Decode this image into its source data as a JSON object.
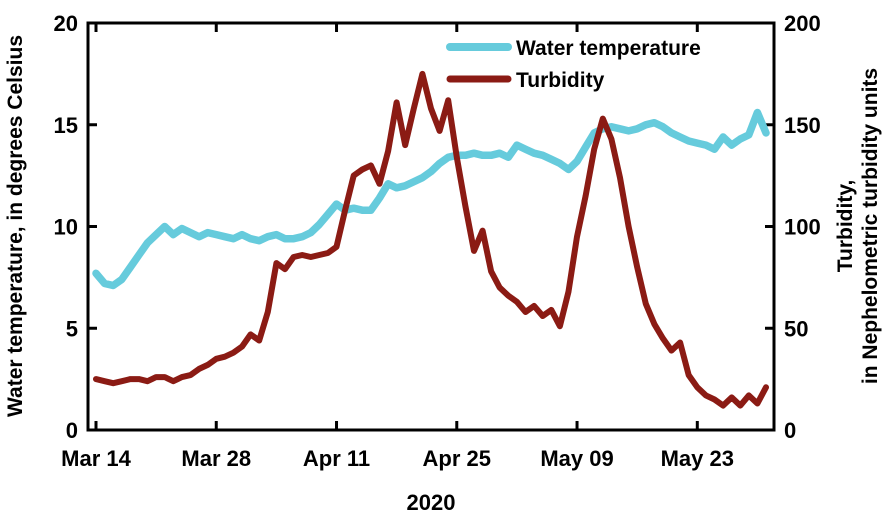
{
  "chart_data": {
    "type": "line",
    "title": "",
    "x": {
      "axis_label": "2020",
      "tick_labels": [
        "Mar 14",
        "Mar 28",
        "Apr 11",
        "Apr 25",
        "May 09",
        "May 23"
      ],
      "tick_days": [
        0,
        14,
        28,
        42,
        56,
        70
      ],
      "domain_days": [
        -1,
        79
      ]
    },
    "y_left": {
      "label": "Water temperature, in degrees Celsius",
      "lim": [
        0,
        20
      ],
      "ticks": [
        0,
        5,
        10,
        15,
        20
      ],
      "tick_labels": [
        "0",
        "5",
        "10",
        "15",
        "20"
      ]
    },
    "y_right": {
      "label_line1": "Turbidity,",
      "label_line2": "in Nephelometric turbidity units",
      "lim": [
        0,
        200
      ],
      "ticks": [
        0,
        50,
        100,
        150,
        200
      ],
      "tick_labels": [
        "0",
        "50",
        "100",
        "150",
        "200"
      ]
    },
    "legend": {
      "position": "top-center"
    },
    "series": [
      {
        "name": "Water temperature",
        "color": "#66CBDC",
        "axis": "left",
        "start_day": 0,
        "step_days": 1,
        "values": [
          7.7,
          7.2,
          7.1,
          7.4,
          8.0,
          8.6,
          9.2,
          9.6,
          10.0,
          9.6,
          9.9,
          9.7,
          9.5,
          9.7,
          9.6,
          9.5,
          9.4,
          9.6,
          9.4,
          9.3,
          9.5,
          9.6,
          9.4,
          9.4,
          9.5,
          9.7,
          10.1,
          10.6,
          11.1,
          10.8,
          10.9,
          10.8,
          10.8,
          11.4,
          12.1,
          11.9,
          12.0,
          12.2,
          12.4,
          12.7,
          13.1,
          13.4,
          13.5,
          13.5,
          13.6,
          13.5,
          13.5,
          13.6,
          13.4,
          14.0,
          13.8,
          13.6,
          13.5,
          13.3,
          13.1,
          12.8,
          13.2,
          13.9,
          14.6,
          14.8,
          14.9,
          14.8,
          14.7,
          14.8,
          15.0,
          15.1,
          14.9,
          14.6,
          14.4,
          14.2,
          14.1,
          14.0,
          13.8,
          14.4,
          14.0,
          14.3,
          14.5,
          15.6,
          14.6
        ]
      },
      {
        "name": "Turbidity",
        "color": "#8B1B14",
        "axis": "right",
        "start_day": 0,
        "step_days": 1,
        "values": [
          25,
          24,
          23,
          24,
          25,
          25,
          24,
          26,
          26,
          24,
          26,
          27,
          30,
          32,
          35,
          36,
          38,
          41,
          47,
          44,
          58,
          82,
          79,
          85,
          86,
          85,
          86,
          87,
          90,
          108,
          125,
          128,
          130,
          121,
          137,
          161,
          140,
          158,
          175,
          158,
          147,
          162,
          134,
          110,
          88,
          98,
          78,
          70,
          66,
          63,
          58,
          61,
          56,
          59,
          51,
          68,
          95,
          115,
          138,
          153,
          143,
          124,
          100,
          80,
          62,
          52,
          45,
          39,
          43,
          27,
          21,
          17,
          15,
          12,
          16,
          12,
          17,
          13,
          21
        ]
      }
    ]
  }
}
